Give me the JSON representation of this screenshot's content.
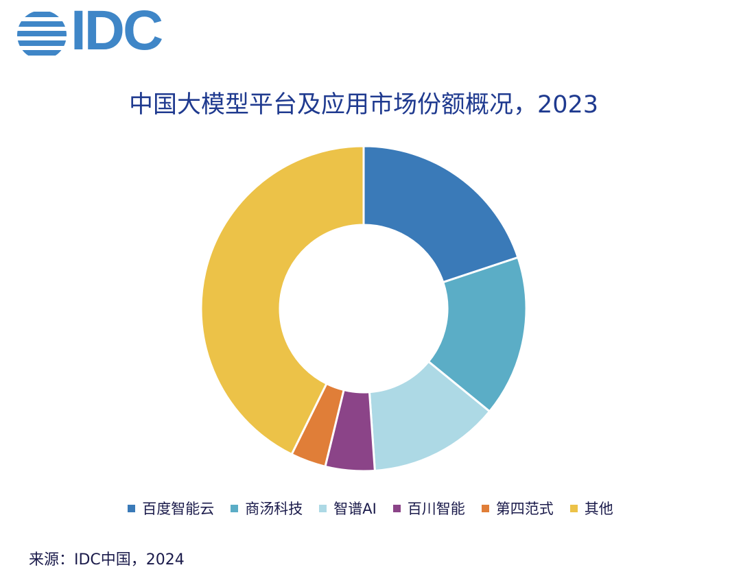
{
  "logo": {
    "text": "IDC",
    "icon": "idc-globe-icon",
    "color": "#3f86c7"
  },
  "chart_data": {
    "type": "pie",
    "subtype": "donut",
    "title": "中国大模型平台及应用市场份额概况，2023",
    "categories": [
      "百度智能云",
      "商汤科技",
      "智谱AI",
      "百川智能",
      "第四范式",
      "其他"
    ],
    "values": [
      19.9,
      16.0,
      13.0,
      4.9,
      3.5,
      42.7
    ],
    "unit": "%",
    "colors": [
      "#3a7ab8",
      "#5badc6",
      "#add9e5",
      "#8b4488",
      "#e07e38",
      "#ecc248"
    ],
    "legend_position": "bottom"
  },
  "source": "来源：IDC中国，2024"
}
